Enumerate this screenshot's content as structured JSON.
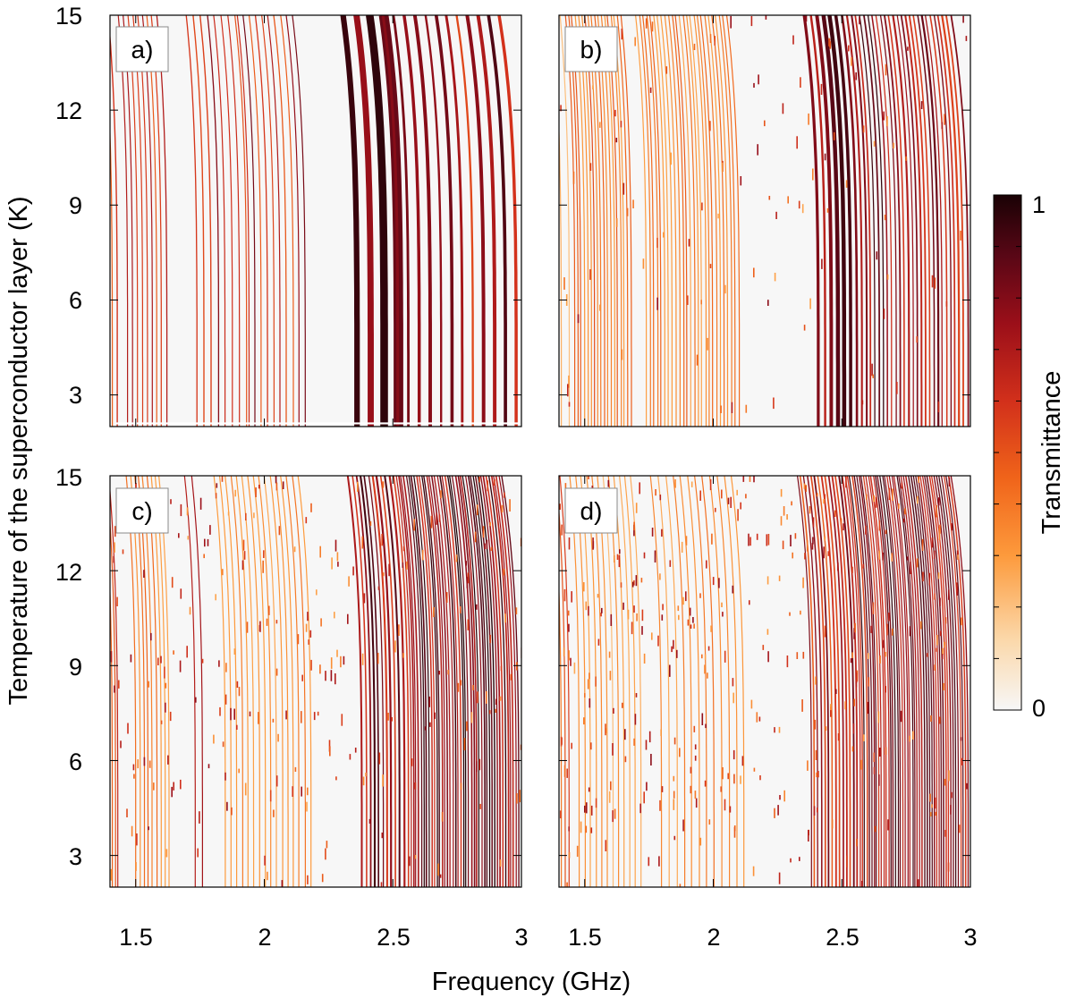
{
  "chart_data": {
    "type": "heatmap",
    "xlabel": "Frequency (GHz)",
    "ylabel": "Temperature of the superconductor layer (K)",
    "colorbar_label": "Transmittance",
    "colorbar_ticks": [
      "0",
      "1"
    ],
    "colorbar_range": [
      0,
      1
    ],
    "colormap": [
      "#f7f7f7",
      "#fbd7a8",
      "#fd9a3c",
      "#f0641a",
      "#d2301b",
      "#9b0f19",
      "#5a0716",
      "#1a0205"
    ],
    "xlim": [
      1.4,
      3.0
    ],
    "ylim": [
      2,
      15
    ],
    "x_ticks": [
      1.5,
      2,
      2.5,
      3
    ],
    "x_tick_labels": [
      "1.5",
      "2",
      "2.5",
      "3"
    ],
    "y_ticks": [
      3,
      6,
      9,
      12,
      15
    ],
    "y_tick_labels": [
      "3",
      "6",
      "9",
      "12",
      "15"
    ],
    "panels": [
      {
        "label": "a)",
        "seed": 11,
        "white_line_T": 2.1,
        "bands": [
          {
            "f0": 1.41,
            "f1": 1.43,
            "n": 2,
            "amp": 0.65,
            "w": 0.004
          },
          {
            "f0": 1.47,
            "f1": 1.62,
            "n": 9,
            "amp": 0.75,
            "w": 0.0035
          },
          {
            "f0": 1.74,
            "f1": 1.93,
            "n": 8,
            "amp": 0.78,
            "w": 0.004
          },
          {
            "f0": 1.94,
            "f1": 2.16,
            "n": 10,
            "amp": 0.8,
            "w": 0.004
          },
          {
            "f0": 2.36,
            "f1": 2.52,
            "n": 4,
            "amp": 1.0,
            "w": 0.03
          },
          {
            "f0": 2.52,
            "f1": 2.98,
            "n": 12,
            "amp": 0.92,
            "w": 0.011
          }
        ],
        "dashes": 0
      },
      {
        "label": "b)",
        "seed": 22,
        "bands": [
          {
            "f0": 1.41,
            "f1": 1.44,
            "n": 2,
            "amp": 0.35,
            "w": 0.003
          },
          {
            "f0": 1.46,
            "f1": 1.68,
            "n": 18,
            "amp": 0.5,
            "w": 0.0022
          },
          {
            "f0": 1.74,
            "f1": 2.1,
            "n": 26,
            "amp": 0.45,
            "w": 0.0022
          },
          {
            "f0": 2.41,
            "f1": 2.56,
            "n": 7,
            "amp": 0.95,
            "w": 0.012
          },
          {
            "f0": 2.58,
            "f1": 2.99,
            "n": 26,
            "amp": 0.95,
            "w": 0.006
          }
        ],
        "dashes": 120
      },
      {
        "label": "c)",
        "seed": 33,
        "bands": [
          {
            "f0": 1.41,
            "f1": 1.43,
            "n": 3,
            "amp": 0.65,
            "w": 0.003
          },
          {
            "f0": 1.5,
            "f1": 1.63,
            "n": 9,
            "amp": 0.45,
            "w": 0.002
          },
          {
            "f0": 1.73,
            "f1": 1.76,
            "n": 2,
            "amp": 0.95,
            "w": 0.003
          },
          {
            "f0": 1.85,
            "f1": 2.18,
            "n": 16,
            "amp": 0.45,
            "w": 0.0018
          },
          {
            "f0": 2.38,
            "f1": 2.56,
            "n": 12,
            "amp": 0.95,
            "w": 0.006
          },
          {
            "f0": 2.57,
            "f1": 2.99,
            "n": 42,
            "amp": 1.0,
            "w": 0.0045
          }
        ],
        "dashes": 260
      },
      {
        "label": "d)",
        "seed": 44,
        "bands": [
          {
            "f0": 1.41,
            "f1": 1.44,
            "n": 3,
            "amp": 0.55,
            "w": 0.003
          },
          {
            "f0": 1.48,
            "f1": 1.72,
            "n": 12,
            "amp": 0.35,
            "w": 0.0018
          },
          {
            "f0": 1.8,
            "f1": 2.12,
            "n": 12,
            "amp": 0.42,
            "w": 0.0018
          },
          {
            "f0": 2.38,
            "f1": 2.56,
            "n": 14,
            "amp": 0.8,
            "w": 0.005
          },
          {
            "f0": 2.57,
            "f1": 2.99,
            "n": 46,
            "amp": 0.95,
            "w": 0.004
          }
        ],
        "dashes": 380
      }
    ]
  }
}
